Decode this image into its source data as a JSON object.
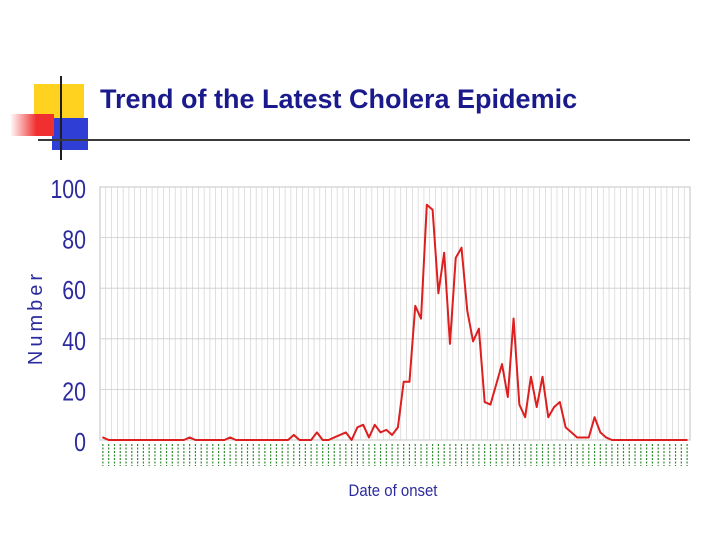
{
  "slide": {
    "title": "Trend of the Latest Cholera Epidemic"
  },
  "colors": {
    "title": "#1a1a8c",
    "line": "#dd1f1f",
    "ylabel": "#2b2b9e",
    "xticks": "#2e8b2e",
    "grid": "#cccccc",
    "deco_yellow": "#ffd21f",
    "deco_red": "#f03030",
    "deco_blue": "#2f3fd6"
  },
  "chart_data": {
    "type": "line",
    "title": "",
    "xlabel": "Date of onset",
    "ylabel": "Number",
    "ylim": [
      0,
      100
    ],
    "yticks": [
      0,
      20,
      40,
      60,
      80,
      100
    ],
    "grid": true,
    "legend": "none",
    "series": [
      {
        "values": [
          1,
          0,
          0,
          0,
          0,
          0,
          0,
          0,
          0,
          0,
          0,
          0,
          0,
          0,
          0,
          1,
          0,
          0,
          0,
          0,
          0,
          0,
          1,
          0,
          0,
          0,
          0,
          0,
          0,
          0,
          0,
          0,
          0,
          2,
          0,
          0,
          0,
          3,
          0,
          0,
          1,
          2,
          3,
          0,
          5,
          6,
          1,
          6,
          3,
          4,
          2,
          5,
          23,
          23,
          53,
          48,
          93,
          91,
          58,
          74,
          38,
          72,
          76,
          51,
          39,
          44,
          15,
          14,
          22,
          30,
          17,
          48,
          14,
          9,
          25,
          13,
          25,
          9,
          13,
          15,
          5,
          3,
          1,
          1,
          1,
          9,
          3,
          1,
          0,
          0,
          0,
          0,
          0,
          0,
          0,
          0,
          0,
          0,
          0,
          0,
          0,
          0
        ]
      }
    ]
  }
}
